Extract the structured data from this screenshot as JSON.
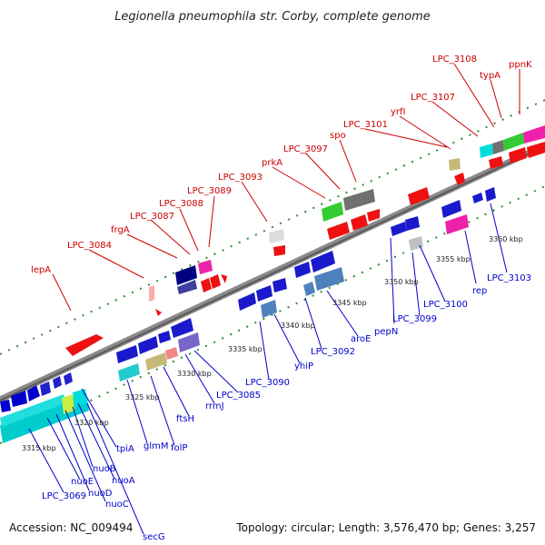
{
  "title": "Legionella pneumophila str. Corby, complete genome",
  "footer": {
    "accession": "Accession: NC_009494",
    "topology": "Topology: circular; Length: 3,576,470 bp; Genes: 3,257"
  },
  "colors": {
    "forward_label": "#cc0000",
    "reverse_label": "#0000cc",
    "backbone": "#8a8a8a",
    "tick": "#2e8b2e"
  },
  "forward_genes": [
    "lepA",
    "LPC_3084",
    "frgA",
    "LPC_3087",
    "LPC_3088",
    "LPC_3089",
    "LPC_3093",
    "prkA",
    "LPC_3097",
    "spo",
    "LPC_3101",
    "yrfI",
    "LPC_3107",
    "LPC_3108",
    "typA",
    "ppnK"
  ],
  "reverse_genes": [
    "LPC_3069",
    "nuoE",
    "nuoD",
    "nuoC",
    "nuoB",
    "nuoA",
    "secG",
    "tpiA",
    "glmM",
    "folP",
    "ftsH",
    "rrmJ",
    "LPC_3085",
    "LPC_3090",
    "yhiP",
    "LPC_3092",
    "aroE",
    "pepN",
    "LPC_3099",
    "LPC_3100",
    "rep",
    "LPC_3103"
  ],
  "scale_labels": [
    "3315 kbp",
    "3320 kbp",
    "3325 kbp",
    "3330 kbp",
    "3335 kbp",
    "3340 kbp",
    "3345 kbp",
    "3350 kbp",
    "3355 kbp",
    "3360 kbp"
  ]
}
